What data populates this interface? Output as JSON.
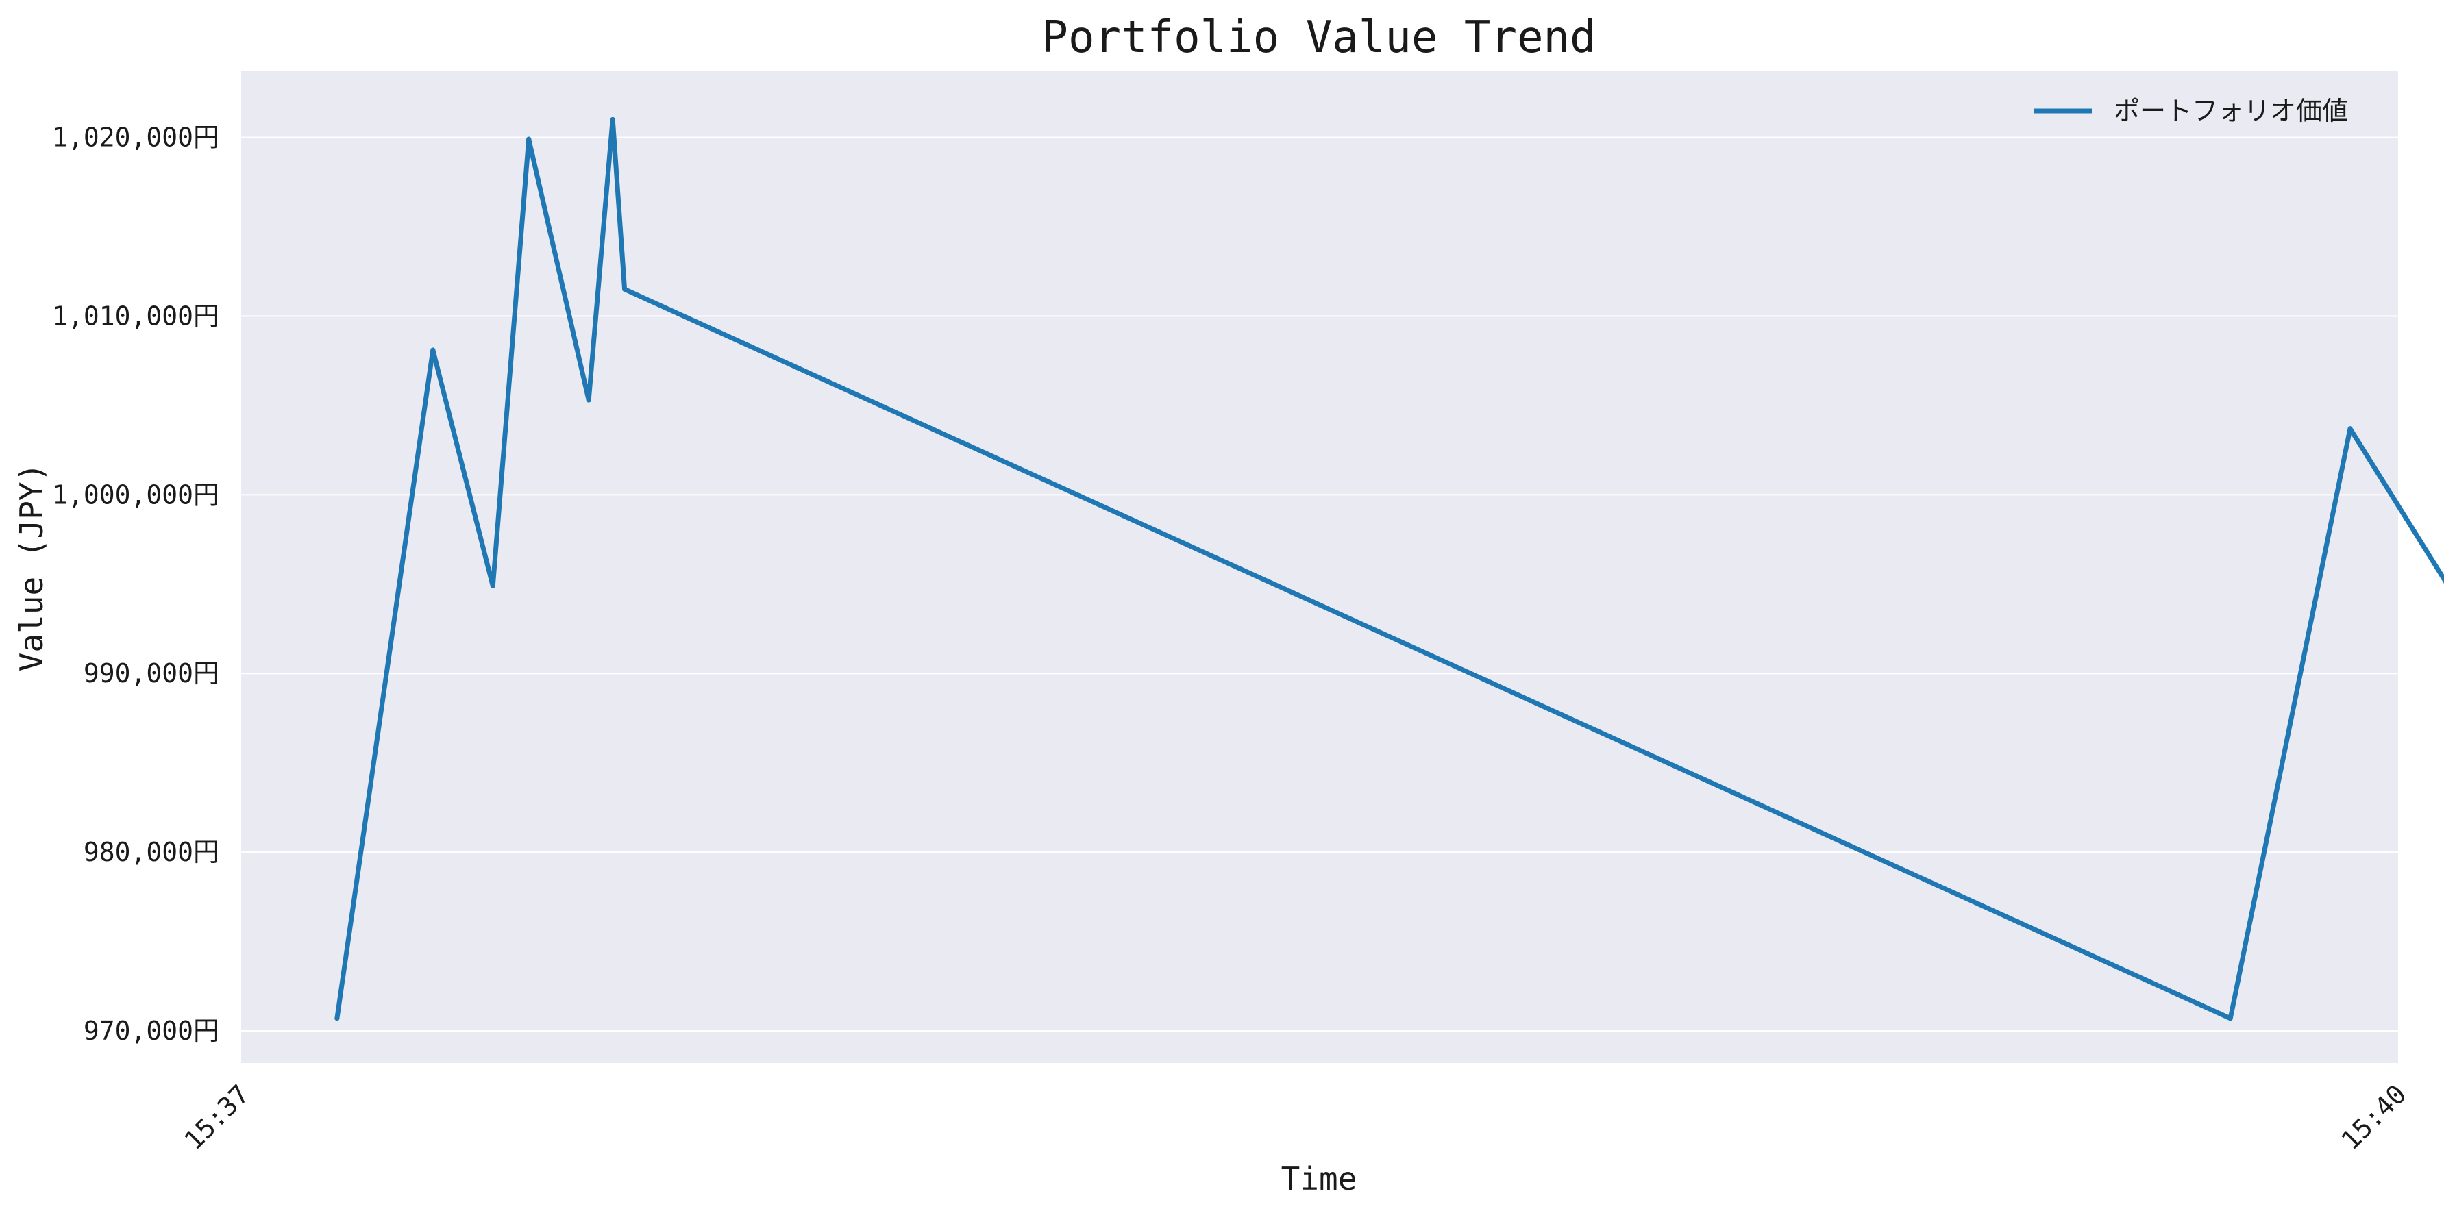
{
  "chart_data": {
    "type": "line",
    "title": "Portfolio Value Trend",
    "xlabel": "Time",
    "ylabel": "Value (JPY)",
    "x_ticks": [
      "15:37",
      "15:40"
    ],
    "y_ticks": [
      "970,000円",
      "980,000円",
      "990,000円",
      "1,000,000円",
      "1,010,000円",
      "1,020,000円"
    ],
    "y_tick_values": [
      970000,
      980000,
      990000,
      1000000,
      1010000,
      1020000
    ],
    "ylim": [
      968200,
      1023700
    ],
    "xlim": [
      "15:37:00",
      "15:40:00"
    ],
    "grid": true,
    "legend_position": "top-right",
    "series": [
      {
        "name": "ポートフォリオ価値",
        "color": "#1f77b4",
        "x": [
          "15:37:08",
          "15:37:16",
          "15:37:21",
          "15:37:24",
          "15:37:29",
          "15:37:31",
          "15:37:32",
          "15:39:46",
          "15:39:56",
          "15:40:04"
        ],
        "values": [
          970700,
          1008100,
          994900,
          1019900,
          1005300,
          1021000,
          1011500,
          970700,
          1003700,
          995100
        ]
      }
    ]
  },
  "colors": {
    "plot_background": "#eaeaf2",
    "grid": "#ffffff",
    "line": "#1f77b4"
  }
}
